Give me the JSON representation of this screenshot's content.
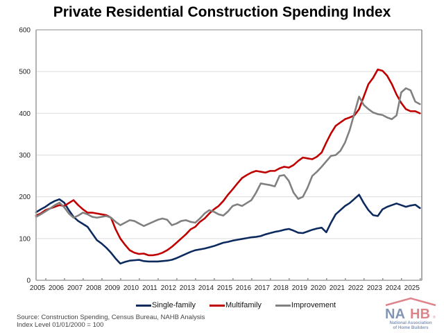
{
  "chart_data": {
    "type": "line",
    "title": "Private Residential Construction Spending Index",
    "xlabel": "",
    "ylabel": "",
    "ylim": [
      0,
      600
    ],
    "yticks": [
      0,
      100,
      200,
      300,
      400,
      500,
      600
    ],
    "xlim": [
      2005,
      2025.6
    ],
    "xtick_labels": [
      "2005",
      "2006",
      "2007",
      "2008",
      "2009",
      "2010",
      "2011",
      "2012",
      "2013",
      "2014",
      "2015",
      "2016",
      "2017",
      "2018",
      "2019",
      "2020",
      "2021",
      "2022",
      "2023",
      "2024",
      "2025"
    ],
    "grid": "horizontal",
    "legend_position": "bottom",
    "x": [
      2005.0,
      2005.25,
      2005.5,
      2005.75,
      2006.0,
      2006.25,
      2006.5,
      2006.75,
      2007.0,
      2007.25,
      2007.5,
      2007.75,
      2008.0,
      2008.25,
      2008.5,
      2008.75,
      2009.0,
      2009.25,
      2009.5,
      2009.75,
      2010.0,
      2010.25,
      2010.5,
      2010.75,
      2011.0,
      2011.25,
      2011.5,
      2011.75,
      2012.0,
      2012.25,
      2012.5,
      2012.75,
      2013.0,
      2013.25,
      2013.5,
      2013.75,
      2014.0,
      2014.25,
      2014.5,
      2014.75,
      2015.0,
      2015.25,
      2015.5,
      2015.75,
      2016.0,
      2016.25,
      2016.5,
      2016.75,
      2017.0,
      2017.25,
      2017.5,
      2017.75,
      2018.0,
      2018.25,
      2018.5,
      2018.75,
      2019.0,
      2019.25,
      2019.5,
      2019.75,
      2020.0,
      2020.25,
      2020.5,
      2020.75,
      2021.0,
      2021.25,
      2021.5,
      2021.75,
      2022.0,
      2022.25,
      2022.5,
      2022.75,
      2023.0,
      2023.25,
      2023.5,
      2023.75,
      2024.0,
      2024.25,
      2024.5,
      2024.75,
      2025.0,
      2025.25,
      2025.5
    ],
    "series": [
      {
        "name": "Single-family",
        "color": "#0d2a5e",
        "values": [
          163,
          170,
          176,
          184,
          190,
          194,
          186,
          168,
          152,
          142,
          135,
          128,
          112,
          96,
          88,
          78,
          66,
          52,
          40,
          44,
          47,
          48,
          49,
          46,
          45,
          45,
          45,
          46,
          47,
          49,
          53,
          58,
          63,
          68,
          72,
          74,
          76,
          79,
          82,
          86,
          90,
          92,
          95,
          97,
          99,
          101,
          103,
          104,
          106,
          110,
          113,
          116,
          118,
          121,
          123,
          119,
          114,
          113,
          117,
          121,
          124,
          126,
          115,
          138,
          158,
          168,
          178,
          185,
          195,
          205,
          185,
          168,
          156,
          154,
          170,
          176,
          180,
          184,
          180,
          176,
          179,
          181,
          173
        ]
      },
      {
        "name": "Multifamily",
        "color": "#c00000",
        "values": [
          155,
          160,
          168,
          172,
          176,
          180,
          178,
          185,
          192,
          180,
          170,
          162,
          162,
          160,
          158,
          156,
          150,
          122,
          100,
          85,
          72,
          66,
          63,
          64,
          60,
          60,
          62,
          66,
          72,
          80,
          90,
          100,
          110,
          122,
          128,
          140,
          148,
          160,
          170,
          178,
          190,
          205,
          218,
          232,
          245,
          252,
          258,
          262,
          260,
          258,
          262,
          262,
          268,
          272,
          270,
          276,
          286,
          294,
          292,
          290,
          296,
          306,
          330,
          352,
          370,
          378,
          386,
          390,
          395,
          410,
          440,
          470,
          485,
          505,
          502,
          490,
          470,
          445,
          425,
          410,
          405,
          405,
          400
        ]
      },
      {
        "name": "Improvement",
        "color": "#808080",
        "values": [
          152,
          158,
          165,
          172,
          180,
          186,
          175,
          160,
          150,
          155,
          162,
          158,
          152,
          150,
          152,
          154,
          150,
          140,
          132,
          138,
          144,
          142,
          136,
          130,
          135,
          140,
          145,
          148,
          145,
          132,
          136,
          142,
          144,
          140,
          138,
          148,
          160,
          168,
          164,
          158,
          155,
          165,
          178,
          182,
          178,
          185,
          192,
          210,
          232,
          230,
          228,
          225,
          250,
          252,
          238,
          210,
          195,
          200,
          222,
          250,
          260,
          272,
          285,
          298,
          300,
          310,
          330,
          360,
          400,
          440,
          420,
          410,
          402,
          398,
          396,
          390,
          386,
          395,
          450,
          460,
          455,
          428,
          422
        ]
      }
    ]
  },
  "legend": {
    "items": [
      {
        "label": "Single-family",
        "color": "#0d2a5e"
      },
      {
        "label": "Multifamily",
        "color": "#c00000"
      },
      {
        "label": "Improvement",
        "color": "#808080"
      }
    ]
  },
  "footer": {
    "source": "Source: Construction Spending, Census Bureau, NAHB Analysis",
    "note": "Index Level 01/01/2000 = 100"
  },
  "logo": {
    "text": "NAHB",
    "subtitle_line1": "National Association",
    "subtitle_line2": "of Home Builders",
    "blue": "#1f3f7a",
    "red": "#c2202e"
  }
}
